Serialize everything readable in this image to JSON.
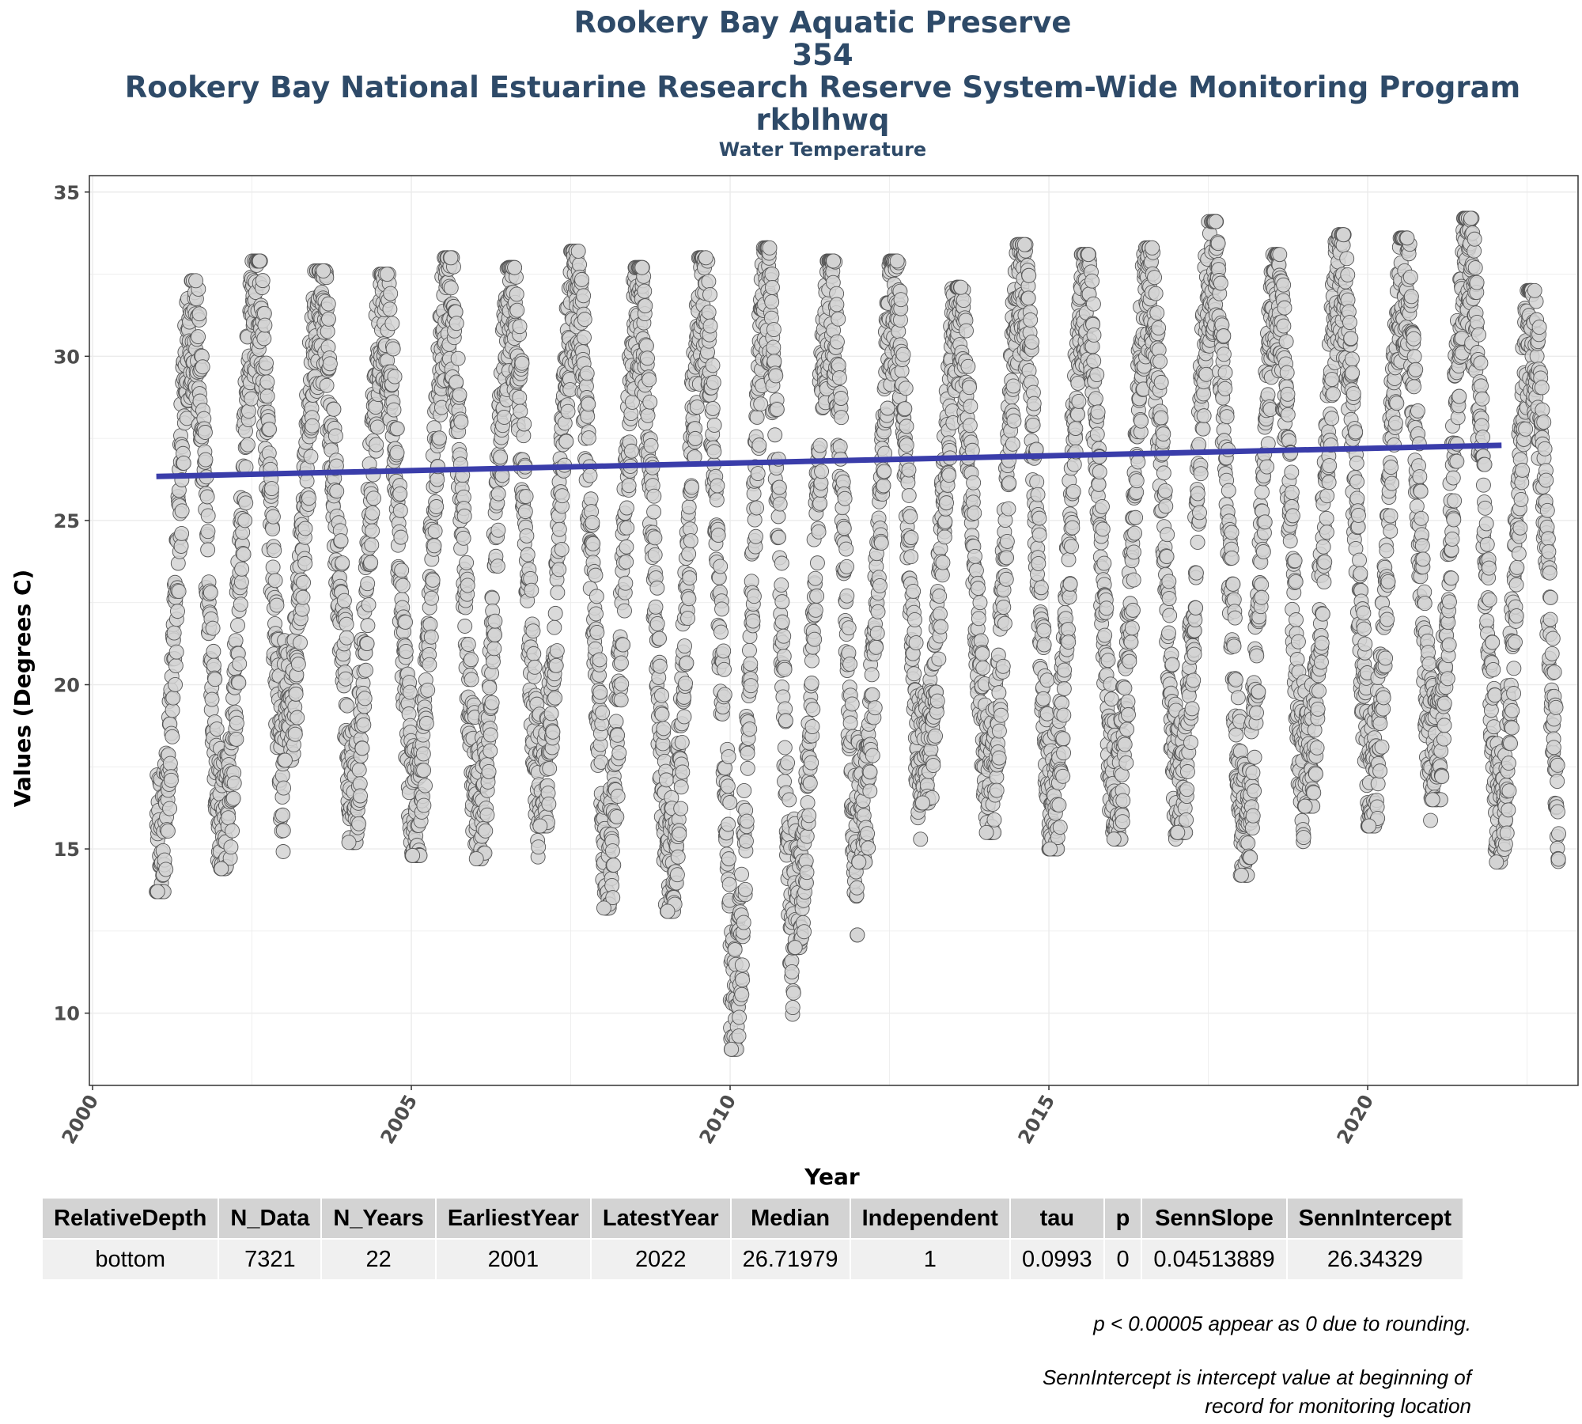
{
  "titles": {
    "line1": "Rookery Bay Aquatic Preserve",
    "line2": "354",
    "line3": "Rookery Bay National Estuarine Research Reserve System-Wide Monitoring Program",
    "line4": "rkblhwq",
    "subtitle": "Water Temperature"
  },
  "chart_data": {
    "type": "scatter",
    "xlabel": "Year",
    "ylabel": "Values (Degrees C)",
    "xlim": [
      1999.95,
      2023.3
    ],
    "ylim": [
      7.8,
      35.5
    ],
    "xticks": [
      2000,
      2005,
      2010,
      2015,
      2020
    ],
    "yticks": [
      10,
      15,
      20,
      25,
      30,
      35
    ],
    "grid": true,
    "point_color": "#d3d3d3",
    "point_edge": "#555555",
    "trend_color": "#3a3daa",
    "trend": {
      "x": [
        2001.0,
        2022.1
      ],
      "y": [
        26.34,
        27.29
      ]
    },
    "annual_extremes": [
      {
        "year": 2001,
        "min": 13.7,
        "max": 32.3
      },
      {
        "year": 2002,
        "min": 14.4,
        "max": 32.9
      },
      {
        "year": 2003,
        "min": 17.7,
        "max": 32.6
      },
      {
        "year": 2004,
        "min": 15.2,
        "max": 32.5
      },
      {
        "year": 2005,
        "min": 14.8,
        "max": 33.0
      },
      {
        "year": 2006,
        "min": 14.7,
        "max": 32.7
      },
      {
        "year": 2007,
        "min": 15.7,
        "max": 33.2
      },
      {
        "year": 2008,
        "min": 13.2,
        "max": 32.7
      },
      {
        "year": 2009,
        "min": 13.1,
        "max": 33.0
      },
      {
        "year": 2010,
        "min": 8.9,
        "max": 33.3
      },
      {
        "year": 2011,
        "min": 12.0,
        "max": 32.9
      },
      {
        "year": 2012,
        "min": 14.6,
        "max": 32.9
      },
      {
        "year": 2013,
        "min": 16.4,
        "max": 32.1
      },
      {
        "year": 2014,
        "min": 15.5,
        "max": 33.4
      },
      {
        "year": 2015,
        "min": 15.0,
        "max": 33.1
      },
      {
        "year": 2016,
        "min": 15.3,
        "max": 33.3
      },
      {
        "year": 2017,
        "min": 15.5,
        "max": 34.1
      },
      {
        "year": 2018,
        "min": 14.2,
        "max": 33.1
      },
      {
        "year": 2019,
        "min": 16.3,
        "max": 33.7
      },
      {
        "year": 2020,
        "min": 15.7,
        "max": 33.6
      },
      {
        "year": 2021,
        "min": 16.5,
        "max": 34.2
      },
      {
        "year": 2022,
        "min": 14.6,
        "max": 32.0
      }
    ]
  },
  "table": {
    "headers": [
      "RelativeDepth",
      "N_Data",
      "N_Years",
      "EarliestYear",
      "LatestYear",
      "Median",
      "Independent",
      "tau",
      "p",
      "SennSlope",
      "SennIntercept"
    ],
    "rows": [
      [
        "bottom",
        "7321",
        "22",
        "2001",
        "2022",
        "26.71979",
        "1",
        "0.0993",
        "0",
        "0.04513889",
        "26.34329"
      ]
    ]
  },
  "notes": {
    "note1": "p < 0.00005 appear as 0 due to rounding.",
    "note2_line1": "SennIntercept is intercept value at beginning of",
    "note2_line2": "record for monitoring location"
  }
}
